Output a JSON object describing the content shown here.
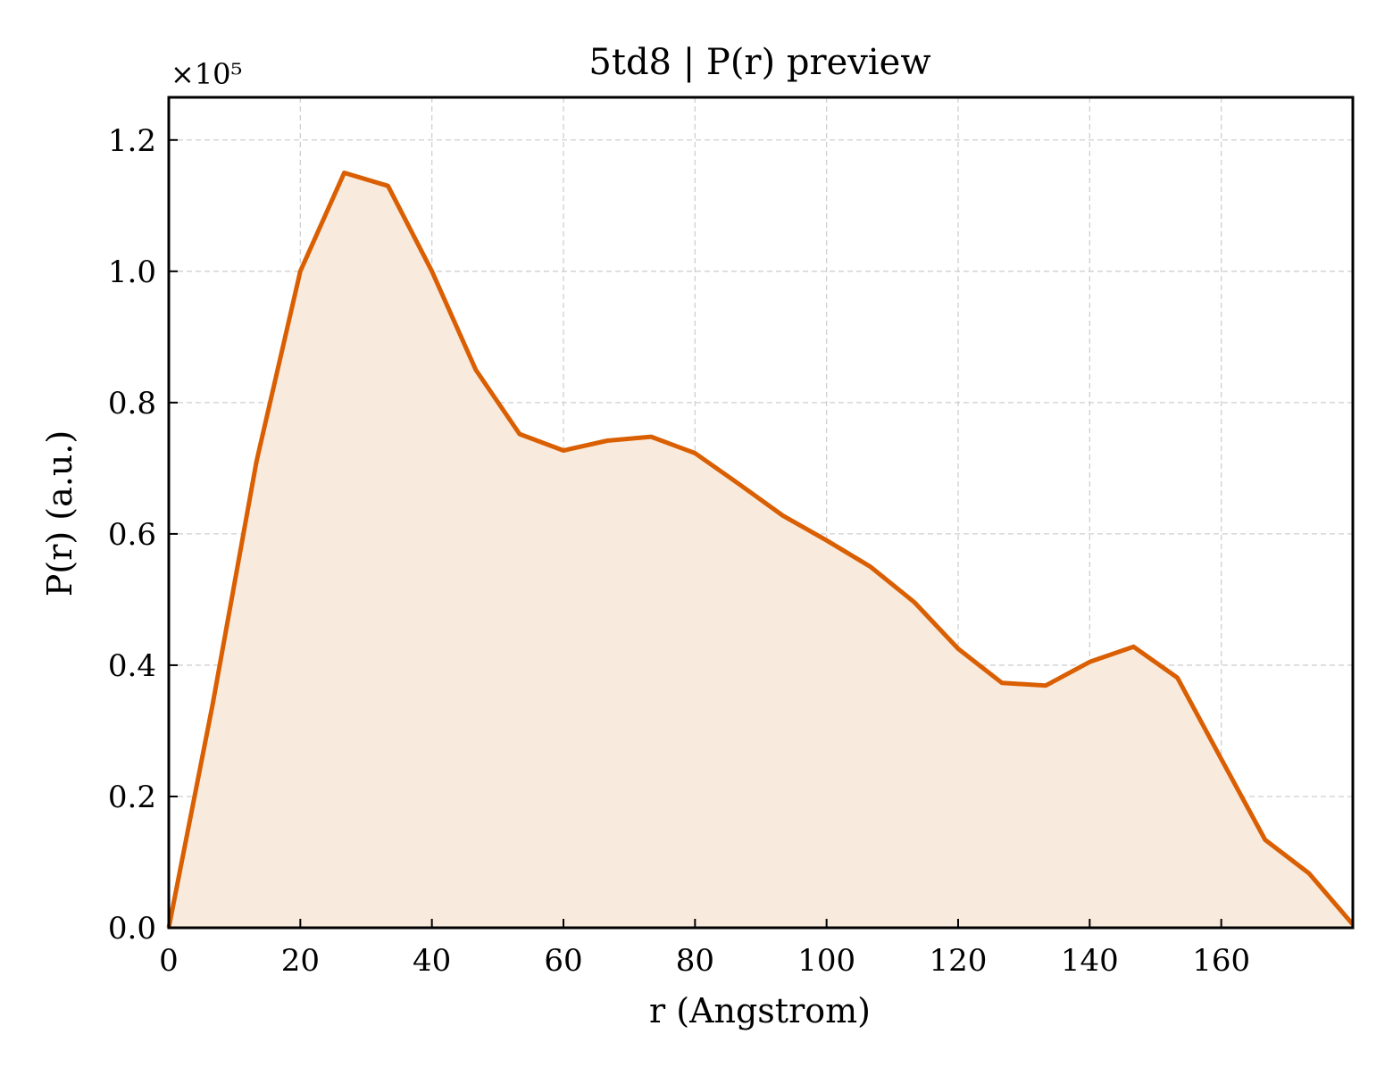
{
  "chart_data": {
    "type": "area",
    "title": "5td8 | P(r) preview",
    "xlabel": "r (Angstrom)",
    "ylabel": "P(r) (a.u.)",
    "y_offset_label": "×10⁵",
    "xlim": [
      0,
      180
    ],
    "ylim": [
      0,
      1.265
    ],
    "xticks": [
      0,
      20,
      40,
      60,
      80,
      100,
      120,
      140,
      160
    ],
    "yticks": [
      0.0,
      0.2,
      0.4,
      0.6,
      0.8,
      1.0,
      1.2
    ],
    "xtick_labels": [
      "0",
      "20",
      "40",
      "60",
      "80",
      "100",
      "120",
      "140",
      "160"
    ],
    "ytick_labels": [
      "0.0",
      "0.2",
      "0.4",
      "0.6",
      "0.8",
      "1.0",
      "1.2"
    ],
    "grid": true,
    "legend": "none",
    "line_color": "#d95f02",
    "fill_color": "#f9eade",
    "series": [
      {
        "x": [
          0,
          6.67,
          13.33,
          20,
          26.67,
          33.33,
          40,
          46.67,
          53.33,
          60,
          66.67,
          73.33,
          80,
          86.67,
          93.33,
          100,
          106.67,
          113.33,
          120,
          126.67,
          133.33,
          140,
          146.67,
          153.33,
          160,
          166.67,
          173.33,
          180
        ],
        "y": [
          0.0,
          0.34,
          0.71,
          1.0,
          1.15,
          1.13,
          1.0,
          0.85,
          0.752,
          0.727,
          0.742,
          0.748,
          0.723,
          0.676,
          0.628,
          0.59,
          0.55,
          0.496,
          0.425,
          0.373,
          0.369,
          0.405,
          0.428,
          0.381,
          0.257,
          0.134,
          0.083,
          0.005
        ]
      }
    ]
  }
}
